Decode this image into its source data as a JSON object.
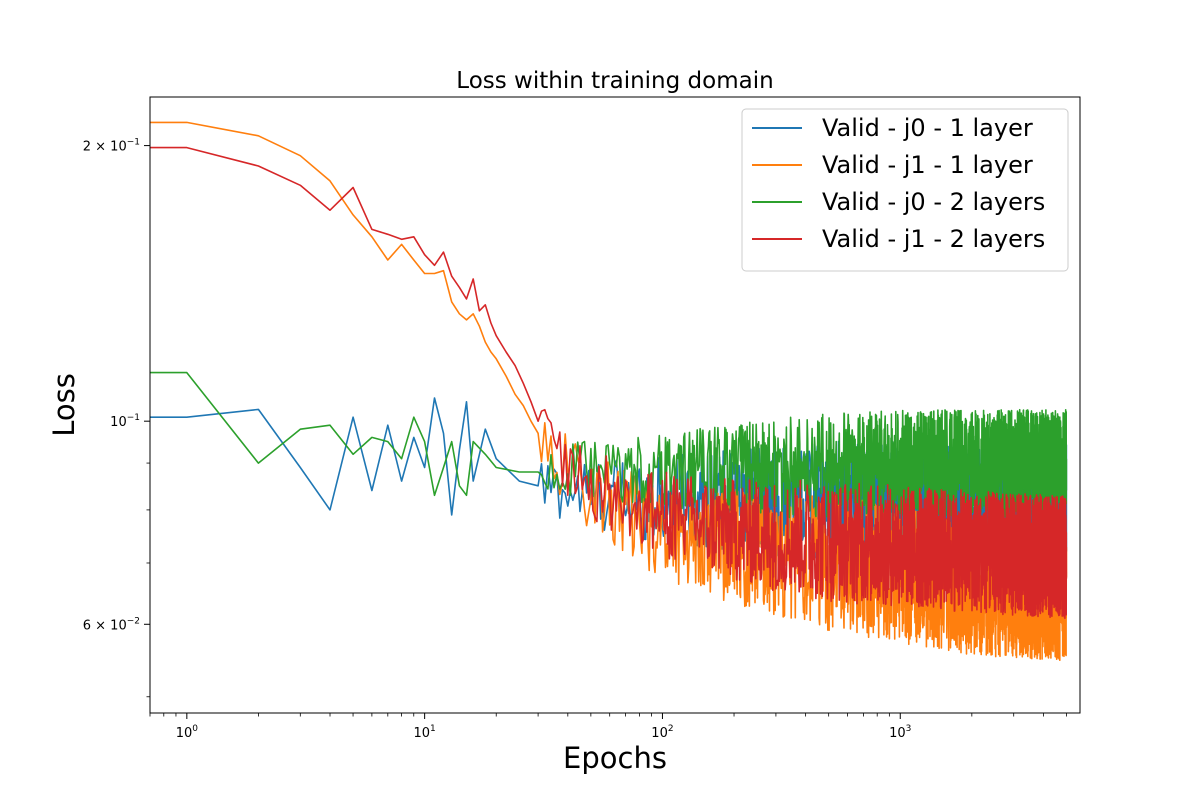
{
  "chart_data": {
    "type": "line",
    "title": "Loss within training domain",
    "xlabel": "Epochs",
    "ylabel": "Loss",
    "xscale": "log",
    "yscale": "log",
    "xlim": [
      0.7,
      5700
    ],
    "ylim": [
      0.048,
      0.226
    ],
    "x_ticks": [
      {
        "value": 1,
        "base": "10",
        "exp": "0"
      },
      {
        "value": 10,
        "base": "10",
        "exp": "1"
      },
      {
        "value": 100,
        "base": "10",
        "exp": "2"
      },
      {
        "value": 1000,
        "base": "10",
        "exp": "3"
      }
    ],
    "y_ticks": [
      {
        "value": 0.2,
        "mant": "2",
        "base": "10",
        "exp": "−1"
      },
      {
        "value": 0.1,
        "mant": "",
        "base": "10",
        "exp": "−1"
      },
      {
        "value": 0.06,
        "mant": "6",
        "base": "10",
        "exp": "−2"
      }
    ],
    "legend_position": "top-right",
    "grid": false,
    "series": [
      {
        "name": "Valid - j0 - 1 layer",
        "color": "#1f77b4",
        "x": [
          0,
          1,
          2,
          3,
          4,
          5,
          6,
          7,
          8,
          9,
          10,
          11,
          12,
          13,
          14,
          15,
          16,
          18,
          20,
          25,
          30,
          40,
          60,
          100,
          200,
          500,
          1000,
          2000,
          5000
        ],
        "y": [
          0.101,
          0.101,
          0.103,
          0.089,
          0.08,
          0.101,
          0.084,
          0.099,
          0.086,
          0.096,
          0.089,
          0.106,
          0.097,
          0.079,
          0.093,
          0.105,
          0.086,
          0.098,
          0.091,
          0.086,
          0.085,
          0.084,
          0.083,
          0.082,
          0.082,
          0.082,
          0.082,
          0.081,
          0.081
        ],
        "noise_from_x": 30,
        "noise_amplitude": 0.08,
        "final_x": 5000
      },
      {
        "name": "Valid - j1 - 1 layer",
        "color": "#ff7f0e",
        "x": [
          0,
          1,
          2,
          3,
          4,
          5,
          6,
          7,
          8,
          9,
          10,
          11,
          12,
          13,
          14,
          15,
          16,
          17,
          18,
          19,
          20,
          22,
          24,
          26,
          28,
          30,
          40,
          60,
          100,
          200,
          500,
          1000,
          2000,
          5000
        ],
        "y": [
          0.212,
          0.212,
          0.205,
          0.195,
          0.183,
          0.168,
          0.159,
          0.15,
          0.156,
          0.15,
          0.145,
          0.145,
          0.146,
          0.135,
          0.131,
          0.129,
          0.131,
          0.127,
          0.122,
          0.119,
          0.117,
          0.112,
          0.107,
          0.104,
          0.1,
          0.097,
          0.088,
          0.081,
          0.076,
          0.073,
          0.07,
          0.068,
          0.066,
          0.065
        ],
        "noise_from_x": 30,
        "noise_amplitude": 0.09,
        "final_x": 5000
      },
      {
        "name": "Valid - j0 - 2 layers",
        "color": "#2ca02c",
        "x": [
          0,
          1,
          2,
          3,
          4,
          5,
          6,
          7,
          8,
          9,
          10,
          11,
          12,
          13,
          14,
          15,
          16,
          18,
          20,
          25,
          30,
          40,
          60,
          100,
          200,
          500,
          1000,
          2000,
          5000
        ],
        "y": [
          0.113,
          0.113,
          0.09,
          0.098,
          0.099,
          0.092,
          0.096,
          0.095,
          0.091,
          0.101,
          0.095,
          0.083,
          0.089,
          0.095,
          0.085,
          0.083,
          0.095,
          0.092,
          0.089,
          0.088,
          0.088,
          0.088,
          0.088,
          0.088,
          0.089,
          0.089,
          0.09,
          0.09,
          0.09
        ],
        "noise_from_x": 30,
        "noise_amplitude": 0.07,
        "final_x": 5000
      },
      {
        "name": "Valid - j1 - 2 layers",
        "color": "#d62728",
        "x": [
          0,
          1,
          2,
          3,
          4,
          5,
          6,
          7,
          8,
          9,
          10,
          11,
          12,
          13,
          14,
          15,
          16,
          17,
          18,
          19,
          20,
          22,
          24,
          26,
          28,
          30,
          40,
          60,
          100,
          200,
          500,
          1000,
          2000,
          5000
        ],
        "y": [
          0.199,
          0.199,
          0.19,
          0.181,
          0.17,
          0.18,
          0.162,
          0.16,
          0.158,
          0.159,
          0.152,
          0.148,
          0.153,
          0.144,
          0.14,
          0.136,
          0.143,
          0.132,
          0.134,
          0.128,
          0.124,
          0.119,
          0.115,
          0.11,
          0.105,
          0.1,
          0.09,
          0.083,
          0.079,
          0.076,
          0.074,
          0.073,
          0.072,
          0.071
        ],
        "noise_from_x": 30,
        "noise_amplitude": 0.08,
        "final_x": 5000
      }
    ]
  }
}
